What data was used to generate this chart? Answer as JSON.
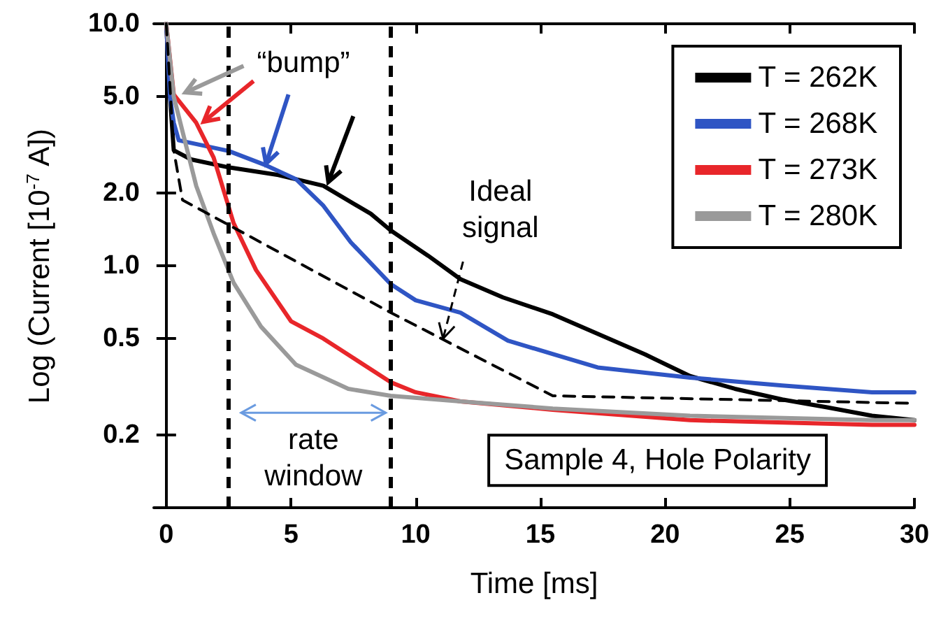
{
  "chart_data": {
    "type": "line",
    "xlabel": "Time [ms]",
    "ylabel": "Log (Current [10$^{-7}$ A])",
    "log": "y",
    "xlim": [
      -0.5,
      30
    ],
    "ylim": [
      0.1,
      10
    ],
    "xticks": [
      0,
      5,
      10,
      15,
      20,
      25,
      30
    ],
    "yticks": [
      {
        "value": 0.2,
        "label": "0.2"
      },
      {
        "value": 0.5,
        "label": "0.5"
      },
      {
        "value": 1,
        "label": "1.0"
      },
      {
        "value": 2,
        "label": "2.0"
      },
      {
        "value": 5,
        "label": "5.0"
      },
      {
        "value": 10,
        "label": "10.0"
      }
    ],
    "grid": false,
    "legend": "top right",
    "marker": "none",
    "series": [
      {
        "name": "T = 262K",
        "color": "#000000",
        "x": [
          0,
          0.15,
          0.3,
          1,
          2.5,
          4.5,
          6.3,
          8.2,
          9,
          10.5,
          11.8,
          13.5,
          15.5,
          19.2,
          21,
          22.8,
          24.7,
          26.5,
          28.3,
          30
        ],
        "values": [
          10,
          5,
          3.0,
          2.75,
          2.55,
          2.37,
          2.14,
          1.64,
          1.4,
          1.1,
          0.88,
          0.74,
          0.63,
          0.43,
          0.35,
          0.31,
          0.28,
          0.26,
          0.24,
          0.23
        ]
      },
      {
        "name": "T = 268K",
        "color": "#2f55c4",
        "x": [
          0,
          0.15,
          0.3,
          0.5,
          2.5,
          4,
          5.2,
          6.3,
          7.4,
          9,
          10,
          11.8,
          13.7,
          17.3,
          21,
          24.7,
          28.3,
          30
        ],
        "values": [
          10,
          5,
          3.9,
          3.3,
          2.98,
          2.6,
          2.28,
          1.77,
          1.25,
          0.84,
          0.72,
          0.64,
          0.49,
          0.38,
          0.345,
          0.32,
          0.3,
          0.3
        ]
      },
      {
        "name": "T = 273K",
        "color": "#e8262a",
        "x": [
          0,
          0.3,
          1.2,
          1.9,
          2.7,
          3.6,
          5,
          6.3,
          9,
          10,
          11.8,
          15.5,
          21,
          28.3,
          30
        ],
        "values": [
          10,
          5.1,
          3.9,
          2.8,
          1.5,
          0.96,
          0.59,
          0.5,
          0.33,
          0.3,
          0.275,
          0.254,
          0.23,
          0.22,
          0.22
        ]
      },
      {
        "name": "T = 280K",
        "color": "#9a9a9a",
        "x": [
          0,
          0.3,
          1.2,
          1.9,
          2.7,
          3.8,
          5.2,
          7.3,
          9,
          11.8,
          15.5,
          21,
          28.3,
          30
        ],
        "values": [
          10,
          5,
          2.14,
          1.36,
          0.85,
          0.56,
          0.39,
          0.31,
          0.29,
          0.275,
          0.257,
          0.24,
          0.23,
          0.23
        ]
      },
      {
        "color": "#000000",
        "line_style": "dashed",
        "x": [
          0,
          0.3,
          0.65,
          9,
          15.5,
          30
        ],
        "values": [
          10,
          3.0,
          1.87,
          0.64,
          0.29,
          0.27
        ]
      }
    ],
    "ref_lines": [
      {
        "axis": "x",
        "value": 2.5,
        "color": "#000000",
        "line_style": "dashed"
      },
      {
        "axis": "x",
        "value": 9,
        "color": "#000000",
        "line_style": "dashed"
      }
    ],
    "annotations": [
      {
        "text": "“bump”",
        "x": 4.0,
        "y": 2.64
      },
      {
        "text": "Ideal\nsignal",
        "x": 11.1,
        "y": 0.5
      },
      "rate\nwindow",
      "Sample 4, Hole Polarity"
    ]
  }
}
